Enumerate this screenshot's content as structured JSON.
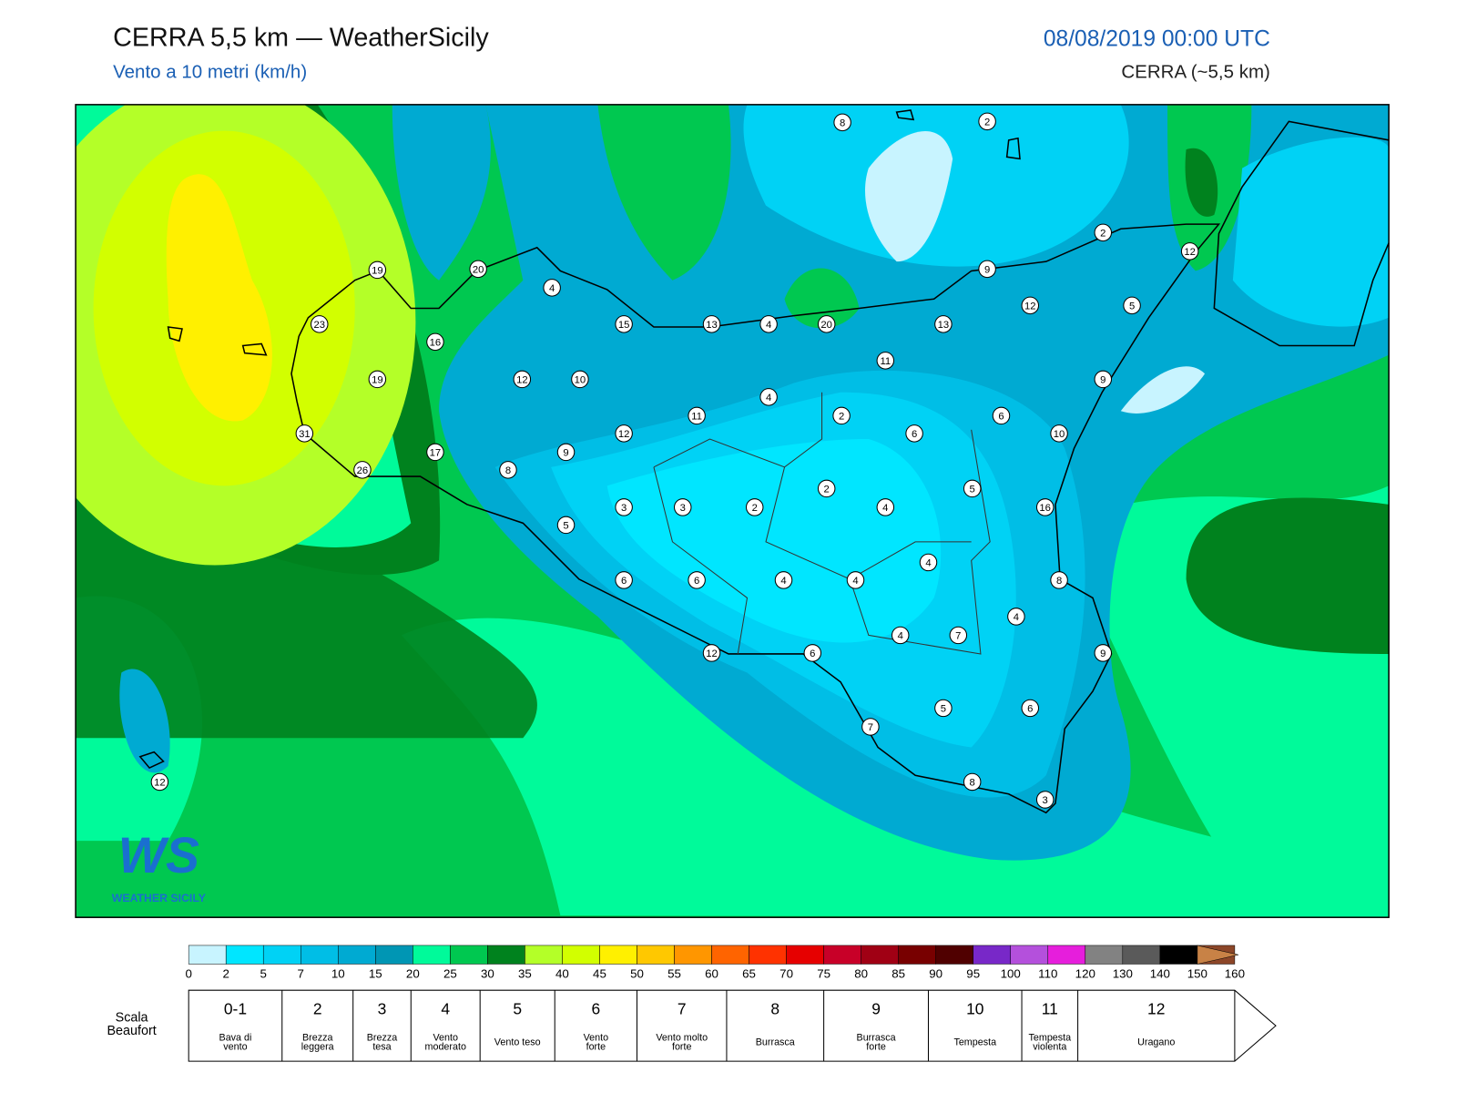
{
  "header": {
    "title": "CERRA 5,5 km — WeatherSicily",
    "subtitle": "Vento a 10 metri (km/h)",
    "datetime": "08/08/2019 00:00 UTC",
    "model": "CERRA (~5,5 km)"
  },
  "map": {
    "stations": [
      8,
      2,
      2,
      12,
      19,
      20,
      4,
      9,
      12,
      5,
      23,
      15,
      13,
      4,
      20,
      13,
      16,
      11,
      19,
      12,
      10,
      9,
      4,
      11,
      2,
      6,
      31,
      12,
      6,
      10,
      17,
      9,
      8,
      26,
      2,
      5,
      3,
      3,
      2,
      4,
      16,
      5,
      4,
      6,
      6,
      4,
      4,
      8,
      4,
      4,
      7,
      12,
      6,
      9,
      7,
      5,
      6,
      12,
      8,
      3
    ]
  },
  "logo": {
    "mark": "WS",
    "name": "WEATHER SICILY"
  },
  "colorbar": {
    "ticks": [
      0,
      2,
      5,
      7,
      10,
      15,
      20,
      25,
      30,
      35,
      40,
      45,
      50,
      55,
      60,
      65,
      70,
      75,
      80,
      85,
      90,
      95,
      100,
      110,
      120,
      130,
      140,
      150,
      160
    ],
    "colors": [
      "#c8f4ff",
      "#00e6ff",
      "#00d2f5",
      "#00bee6",
      "#00aad2",
      "#0096b4",
      "#00fa9a",
      "#00c850",
      "#00821e",
      "#b4ff28",
      "#d2ff00",
      "#fff000",
      "#ffc800",
      "#ff9600",
      "#ff6400",
      "#ff3200",
      "#e60000",
      "#c80028",
      "#a00014",
      "#780000",
      "#500000",
      "#7828c8",
      "#b450dc",
      "#e61edc",
      "#828282",
      "#5a5a5a",
      "#000000",
      "#8c4628",
      "#c88246"
    ]
  },
  "beaufort": {
    "label": [
      "Scala",
      "Beaufort"
    ],
    "levels": [
      {
        "force": "0-1",
        "desc": [
          "Bava di",
          "vento"
        ]
      },
      {
        "force": "2",
        "desc": [
          "Brezza",
          "leggera"
        ]
      },
      {
        "force": "3",
        "desc": [
          "Brezza",
          "tesa"
        ]
      },
      {
        "force": "4",
        "desc": [
          "Vento",
          "moderato"
        ]
      },
      {
        "force": "5",
        "desc": [
          "Vento teso"
        ]
      },
      {
        "force": "6",
        "desc": [
          "Vento",
          "forte"
        ]
      },
      {
        "force": "7",
        "desc": [
          "Vento molto",
          "forte"
        ]
      },
      {
        "force": "8",
        "desc": [
          "Burrasca"
        ]
      },
      {
        "force": "9",
        "desc": [
          "Burrasca",
          "forte"
        ]
      },
      {
        "force": "10",
        "desc": [
          "Tempesta"
        ]
      },
      {
        "force": "11",
        "desc": [
          "Tempesta",
          "violenta"
        ]
      },
      {
        "force": "12",
        "desc": [
          "Uragano"
        ]
      }
    ]
  }
}
